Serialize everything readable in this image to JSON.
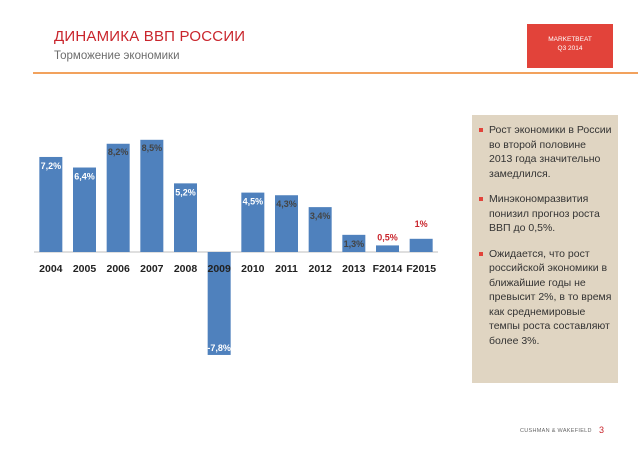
{
  "header": {
    "title": "ДИНАМИКА ВВП РОССИИ",
    "subtitle": "Торможение экономики",
    "brand_line1": "MARKETBEAT",
    "brand_line2": "Q3 2014"
  },
  "colors": {
    "accent": "#e2433a",
    "bar": "#4f81bd",
    "panel": "#e0d5c2",
    "rule": "#f2a25d"
  },
  "chart_data": {
    "type": "bar",
    "categories": [
      "2004",
      "2005",
      "2006",
      "2007",
      "2008",
      "2009",
      "2010",
      "2011",
      "2012",
      "2013",
      "F2014",
      "F2015"
    ],
    "values": [
      7.2,
      6.4,
      8.2,
      8.5,
      5.2,
      -7.8,
      4.5,
      4.3,
      3.4,
      1.3,
      0.5,
      1.0
    ],
    "labels": [
      "7,2%",
      "6,4%",
      "8,2%",
      "8,5%",
      "5,2%",
      "-7,8%",
      "4,5%",
      "4,3%",
      "3,4%",
      "1,3%",
      "0,5%",
      "1%"
    ],
    "highlight_labels": [
      10,
      11
    ],
    "ylim": [
      -9,
      9.5
    ],
    "grid": false,
    "legend": "none"
  },
  "side_panel": {
    "bullets": [
      "Рост экономики в России во второй половине 2013 года значительно замедлился.",
      "Минэкономразвития понизил прогноз роста ВВП до 0,5%.",
      "Ожидается, что рост российской экономики в ближайшие годы не превысит 2%, в то время как среднемировые темпы роста составляют более 3%."
    ]
  },
  "footer": {
    "brand": "CUSHMAN & WAKEFIELD",
    "page_number": "3"
  }
}
